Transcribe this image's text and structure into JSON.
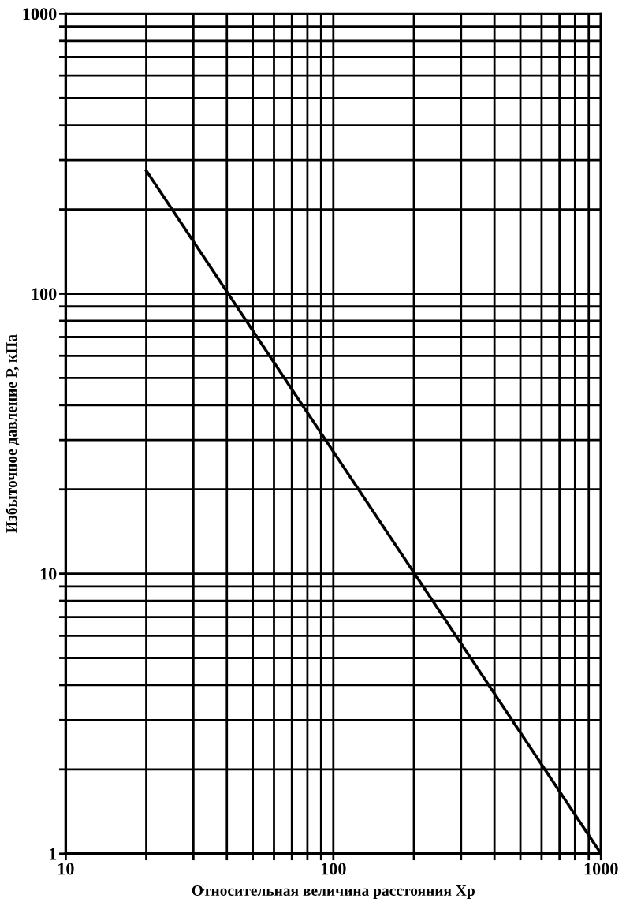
{
  "chart_data": {
    "type": "line",
    "xlabel": "Относительная величина расстояния Хр",
    "ylabel": "Избыточное давление Р, кПа",
    "x": [
      20,
      1000
    ],
    "series": [
      {
        "color": "#000000",
        "values": [
          275,
          1
        ]
      }
    ],
    "log": "xy",
    "grid": true,
    "marker": "none",
    "line_style": "solid",
    "xlim": [
      10,
      1000
    ],
    "ylim": [
      1,
      1000
    ],
    "xticks": [
      10,
      {
        "value": 20,
        "label": null
      },
      {
        "value": 30,
        "label": null
      },
      {
        "value": 40,
        "label": null
      },
      {
        "value": 50,
        "label": null
      },
      {
        "value": 60,
        "label": null
      },
      {
        "value": 70,
        "label": null
      },
      {
        "value": 80,
        "label": null
      },
      {
        "value": 90,
        "label": null
      },
      100,
      {
        "value": 200,
        "label": null
      },
      {
        "value": 300,
        "label": null
      },
      {
        "value": 400,
        "label": null
      },
      {
        "value": 500,
        "label": null
      },
      {
        "value": 600,
        "label": null
      },
      {
        "value": 700,
        "label": null
      },
      {
        "value": 800,
        "label": null
      },
      {
        "value": 900,
        "label": null
      },
      1000
    ],
    "yticks": [
      1,
      {
        "value": 2,
        "label": null
      },
      {
        "value": 3,
        "label": null
      },
      {
        "value": 4,
        "label": null
      },
      {
        "value": 5,
        "label": null
      },
      {
        "value": 6,
        "label": null
      },
      {
        "value": 7,
        "label": null
      },
      {
        "value": 8,
        "label": null
      },
      {
        "value": 9,
        "label": null
      },
      10,
      {
        "value": 20,
        "label": null
      },
      {
        "value": 30,
        "label": null
      },
      {
        "value": 40,
        "label": null
      },
      {
        "value": 50,
        "label": null
      },
      {
        "value": 60,
        "label": null
      },
      {
        "value": 70,
        "label": null
      },
      {
        "value": 80,
        "label": null
      },
      {
        "value": 90,
        "label": null
      },
      100,
      {
        "value": 200,
        "label": null
      },
      {
        "value": 300,
        "label": null
      },
      {
        "value": 400,
        "label": null
      },
      {
        "value": 500,
        "label": null
      },
      {
        "value": 600,
        "label": null
      },
      {
        "value": 700,
        "label": null
      },
      {
        "value": 800,
        "label": null
      },
      {
        "value": 900,
        "label": null
      },
      1000
    ]
  }
}
